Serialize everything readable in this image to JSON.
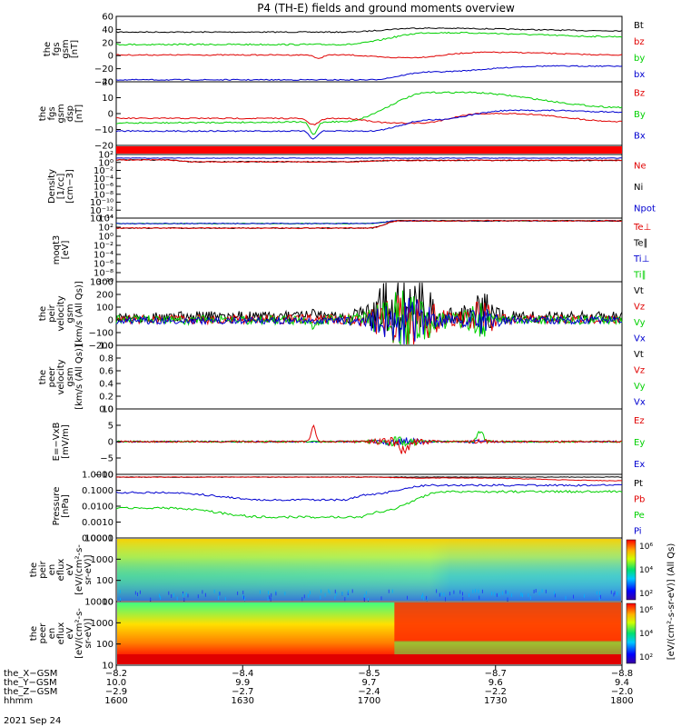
{
  "title": "P4 (TH-E) fields and ground moments overview",
  "colors": {
    "black": "#000000",
    "red": "#e00000",
    "green": "#00d000",
    "blue": "#0000d0"
  },
  "chart_data": [
    {
      "type": "line",
      "ylabel": [
        "the",
        "fgs",
        "gsm",
        "[nT]"
      ],
      "yticks": [
        "60",
        "40",
        "20",
        "0",
        "−20",
        "−40"
      ],
      "ylim": [
        -40,
        60
      ],
      "legend": [
        {
          "label": "Bt",
          "color": "black"
        },
        {
          "label": "bz",
          "color": "red"
        },
        {
          "label": "by",
          "color": "green"
        },
        {
          "label": "bx",
          "color": "blue"
        }
      ]
    },
    {
      "type": "line",
      "ylabel": [
        "the",
        "fgs",
        "gsm",
        "dsp",
        "[nT]"
      ],
      "yticks": [
        "20",
        "10",
        "0",
        "−10",
        "−20"
      ],
      "ylim": [
        -20,
        20
      ],
      "legend": [
        {
          "label": "Bz",
          "color": "red"
        },
        {
          "label": "By",
          "color": "green"
        },
        {
          "label": "Bx",
          "color": "blue"
        }
      ]
    },
    {
      "type": "bar",
      "ylabel": [],
      "yticks": [],
      "legend": []
    },
    {
      "type": "line",
      "scale": "log",
      "ylabel": [
        "Density",
        "[1/cc]",
        "[cm−3]"
      ],
      "yticks": [
        "10²",
        "10⁰",
        "10⁻²",
        "10⁻⁴",
        "10⁻⁶",
        "10⁻⁸",
        "10⁻¹⁰",
        "10⁻¹²",
        "10⁻¹⁴"
      ],
      "legend": [
        {
          "label": "Ne",
          "color": "red"
        },
        {
          "label": "Ni",
          "color": "black"
        },
        {
          "label": "Npot",
          "color": "blue"
        }
      ]
    },
    {
      "type": "line",
      "scale": "log",
      "ylabel": [
        "moqt3",
        "[eV]"
      ],
      "yticks": [
        "10⁴",
        "10²",
        "10⁰",
        "10⁻²",
        "10⁻⁴",
        "10⁻⁶",
        "10⁻⁸",
        "10⁻¹⁰"
      ],
      "legend": [
        {
          "label": "Te⊥",
          "color": "red"
        },
        {
          "label": "Te∥",
          "color": "black"
        },
        {
          "label": "Ti⊥",
          "color": "blue"
        },
        {
          "label": "Ti∥",
          "color": "green"
        }
      ]
    },
    {
      "type": "line",
      "ylabel": [
        "the",
        "peir",
        "velocity",
        "gsm",
        "[km/s (All Qs)]"
      ],
      "yticks": [
        "300",
        "200",
        "100",
        "0",
        "−100",
        "−200"
      ],
      "ylim": [
        -200,
        300
      ],
      "legend": [
        {
          "label": "Vt",
          "color": "black"
        },
        {
          "label": "Vz",
          "color": "red"
        },
        {
          "label": "Vy",
          "color": "green"
        },
        {
          "label": "Vx",
          "color": "blue"
        }
      ]
    },
    {
      "type": "line",
      "ylabel": [
        "the",
        "peer",
        "velocity",
        "gsm",
        "[km/s (All Qs)]"
      ],
      "yticks": [
        "1.0",
        "0.8",
        "0.6",
        "0.4",
        "0.2",
        "0.0"
      ],
      "ylim": [
        0,
        1
      ],
      "legend": [
        {
          "label": "Vt",
          "color": "black"
        },
        {
          "label": "Vz",
          "color": "red"
        },
        {
          "label": "Vy",
          "color": "green"
        },
        {
          "label": "Vx",
          "color": "blue"
        }
      ]
    },
    {
      "type": "line",
      "ylabel": [
        "E=−VxB",
        "[mV/m]"
      ],
      "yticks": [
        "10",
        "5",
        "0",
        "−5",
        "−10"
      ],
      "ylim": [
        -10,
        10
      ],
      "legend": [
        {
          "label": "Ez",
          "color": "red"
        },
        {
          "label": "Ey",
          "color": "green"
        },
        {
          "label": "Ex",
          "color": "blue"
        }
      ]
    },
    {
      "type": "line",
      "scale": "log",
      "ylabel": [
        "Pressure",
        "[nPa]"
      ],
      "yticks": [
        "1.0000",
        "0.1000",
        "0.0100",
        "0.0010",
        "0.0001"
      ],
      "legend": [
        {
          "label": "Pt",
          "color": "black"
        },
        {
          "label": "Pb",
          "color": "red"
        },
        {
          "label": "Pe",
          "color": "green"
        },
        {
          "label": "Pi",
          "color": "blue"
        }
      ]
    },
    {
      "type": "heatmap",
      "ylabel": [
        "the",
        "peir",
        "en",
        "eflux",
        "eV",
        "[eV/(cm²-s-",
        "sr-eV)]"
      ],
      "yticks": [
        "10000",
        "1000",
        "100",
        "10"
      ],
      "legend": []
    },
    {
      "type": "heatmap",
      "ylabel": [
        "the",
        "peer",
        "en",
        "eflux",
        "eV",
        "[eV/(cm²-s-",
        "sr-eV)]"
      ],
      "yticks": [
        "10000",
        "1000",
        "100",
        "10"
      ],
      "legend": []
    }
  ],
  "colorbar": {
    "upper_ticks": [
      "10⁶",
      "10⁴",
      "10²"
    ],
    "lower_ticks": [
      "10⁶",
      "10⁴",
      "10²"
    ],
    "label": "[eV/(cm²-s-sr-eV)] (All Qs)"
  },
  "xaxis": {
    "rows": [
      {
        "label": "the_X−GSM",
        "values": [
          "−8.2",
          "−8.4",
          "−8.5",
          "−8.7",
          "−8.8"
        ]
      },
      {
        "label": "the_Y−GSM",
        "values": [
          "10.0",
          "9.9",
          "9.7",
          "9.6",
          "9.4"
        ]
      },
      {
        "label": "the_Z−GSM",
        "values": [
          "−2.9",
          "−2.7",
          "−2.4",
          "−2.2",
          "−2.0"
        ]
      },
      {
        "label": "hhmm",
        "values": [
          "1600",
          "1630",
          "1700",
          "1730",
          "1800"
        ]
      }
    ],
    "date": "2021 Sep 24"
  }
}
